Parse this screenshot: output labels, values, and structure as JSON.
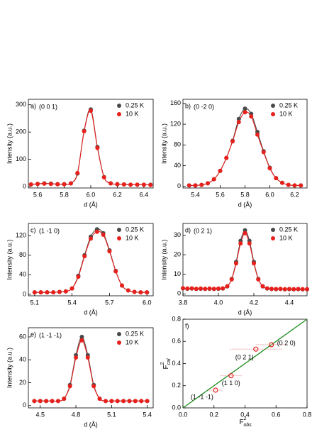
{
  "chart_data": [
    {
      "type": "line",
      "label": "a)",
      "reflection": "(0 0 1)",
      "xlabel": "d (Å)",
      "ylabel": "Intensity (a.u.)",
      "legend": "upper right",
      "x": [
        5.55,
        5.6,
        5.65,
        5.7,
        5.75,
        5.8,
        5.85,
        5.9,
        5.95,
        6.0,
        6.05,
        6.1,
        6.15,
        6.2,
        6.25,
        6.3,
        6.35,
        6.4,
        6.45
      ],
      "series": [
        {
          "name": "0.25 K",
          "color": "#4a4a4a",
          "values": [
            8,
            10,
            12,
            11,
            9,
            9,
            12,
            48,
            205,
            283,
            145,
            35,
            12,
            9,
            8,
            7,
            7,
            7,
            7
          ]
        },
        {
          "name": "10 K",
          "color": "#e8201c",
          "values": [
            8,
            10,
            11,
            10,
            9,
            9,
            12,
            50,
            203,
            278,
            142,
            34,
            12,
            9,
            8,
            7,
            7,
            7,
            6
          ]
        }
      ],
      "xlim": [
        5.53,
        6.47
      ],
      "ylim": [
        -5,
        320
      ],
      "xticks": [
        5.6,
        5.8,
        {
          "value": 6,
          "label": "6.0"
        },
        6.2,
        6.4
      ],
      "yticks": [
        0,
        100,
        200,
        300
      ]
    },
    {
      "type": "line",
      "label": "b)",
      "reflection": "(0 -2 0)",
      "xlabel": "d (Å)",
      "ylabel": "Intensity (a.u.)",
      "legend": "upper right",
      "x": [
        5.35,
        5.4,
        5.45,
        5.5,
        5.55,
        5.6,
        5.65,
        5.7,
        5.75,
        5.8,
        5.85,
        5.9,
        5.95,
        6.0,
        6.05,
        6.1,
        6.15,
        6.2,
        6.25
      ],
      "series": [
        {
          "name": "0.25 K",
          "color": "#4a4a4a",
          "values": [
            2,
            2,
            3,
            6,
            14,
            30,
            55,
            88,
            130,
            150,
            140,
            105,
            68,
            36,
            16,
            7,
            3,
            2,
            2
          ]
        },
        {
          "name": "10 K",
          "color": "#e8201c",
          "values": [
            2,
            2,
            3,
            6,
            14,
            30,
            55,
            87,
            124,
            143,
            135,
            100,
            66,
            35,
            16,
            7,
            3,
            2,
            2
          ]
        }
      ],
      "xlim": [
        5.3,
        6.3
      ],
      "ylim": [
        -3,
        168
      ],
      "xticks": [
        5.4,
        5.6,
        5.8,
        {
          "value": 6,
          "label": "6.0"
        },
        6.2
      ],
      "yticks": [
        0,
        40,
        80,
        120,
        160
      ]
    },
    {
      "type": "line",
      "label": "c)",
      "reflection": "(1 -1 0)",
      "xlabel": "d (Å)",
      "ylabel": "Intensity (a.u.)",
      "legend": "upper right",
      "x": [
        5.1,
        5.15,
        5.2,
        5.25,
        5.3,
        5.35,
        5.4,
        5.45,
        5.5,
        5.55,
        5.6,
        5.65,
        5.7,
        5.75,
        5.8,
        5.85,
        5.9,
        5.95,
        6.0
      ],
      "series": [
        {
          "name": "0.25 K",
          "color": "#4a4a4a",
          "values": [
            4,
            4,
            4,
            4,
            5,
            6,
            12,
            38,
            80,
            118,
            133,
            125,
            90,
            48,
            18,
            8,
            5,
            4,
            4
          ]
        },
        {
          "name": "10 K",
          "color": "#e8201c",
          "values": [
            4,
            4,
            4,
            4,
            5,
            6,
            12,
            36,
            78,
            114,
            128,
            122,
            88,
            47,
            18,
            8,
            5,
            4,
            4
          ]
        }
      ],
      "xlim": [
        5.05,
        6.05
      ],
      "ylim": [
        -3,
        145
      ],
      "xticks": [
        5.1,
        5.4,
        5.7,
        {
          "value": 6,
          "label": "6.0"
        }
      ],
      "yticks": [
        0,
        40,
        80,
        120
      ]
    },
    {
      "type": "line",
      "label": "d)",
      "reflection": "(0 2 1)",
      "xlabel": "d (Å)",
      "ylabel": "Intensity (a.u.)",
      "legend": "upper right",
      "x": [
        3.8,
        3.825,
        3.85,
        3.875,
        3.9,
        3.925,
        3.95,
        3.975,
        4.0,
        4.025,
        4.05,
        4.075,
        4.1,
        4.125,
        4.15,
        4.175,
        4.2,
        4.225,
        4.25,
        4.275,
        4.3,
        4.325,
        4.35,
        4.375,
        4.4,
        4.425,
        4.45,
        4.475,
        4.5
      ],
      "series": [
        {
          "name": "0.25 K",
          "color": "#4a4a4a",
          "values": [
            2.8,
            2.6,
            2.7,
            2.5,
            2.6,
            2.5,
            2.6,
            2.5,
            2.6,
            2.7,
            3.8,
            7.6,
            16.3,
            27.1,
            32.5,
            27.1,
            16.3,
            7.6,
            3.8,
            2.7,
            2.5,
            2.4,
            2.5,
            2.3,
            2.4,
            2.3,
            2.4,
            2.3,
            2.3
          ]
        },
        {
          "name": "10 K",
          "color": "#e8201c",
          "values": [
            2.9,
            2.7,
            2.8,
            2.6,
            2.7,
            2.6,
            2.7,
            2.6,
            2.7,
            2.8,
            3.9,
            7.4,
            15.6,
            25.8,
            31.0,
            25.8,
            15.6,
            7.4,
            3.9,
            2.8,
            2.6,
            2.5,
            2.6,
            2.4,
            2.5,
            2.4,
            2.5,
            2.4,
            2.4
          ]
        }
      ],
      "xlim": [
        3.8,
        4.5
      ],
      "ylim": [
        -1,
        36
      ],
      "xticks": [
        3.8,
        {
          "value": 4,
          "label": "4.0"
        },
        4.2,
        4.4
      ],
      "yticks": [
        0,
        10,
        20,
        30
      ]
    },
    {
      "type": "line",
      "label": "e)",
      "reflection": "(1 -1 -1)",
      "xlabel": "d (Å)",
      "ylabel": "Intensity (a.u.)",
      "legend": "upper right",
      "x": [
        4.45,
        4.5,
        4.55,
        4.6,
        4.65,
        4.7,
        4.75,
        4.8,
        4.85,
        4.9,
        4.95,
        5.0,
        5.05,
        5.1,
        5.15,
        5.2,
        5.25,
        5.3,
        5.35,
        5.4
      ],
      "series": [
        {
          "name": "0.25 K",
          "color": "#4a4a4a",
          "values": [
            4,
            4,
            4,
            4,
            4,
            6,
            18,
            44,
            60,
            44,
            18,
            6,
            4,
            4,
            4,
            4,
            4,
            4,
            4,
            4
          ]
        },
        {
          "name": "10 K",
          "color": "#e8201c",
          "values": [
            4,
            4,
            4,
            4,
            4,
            6,
            17,
            42,
            57,
            42,
            17,
            6,
            4,
            4,
            4,
            4,
            4,
            4,
            4,
            4
          ]
        }
      ],
      "xlim": [
        4.4,
        5.45
      ],
      "ylim": [
        -2,
        68
      ],
      "xticks": [
        4.5,
        4.8,
        5.1,
        5.4
      ],
      "yticks": [
        0,
        20,
        40,
        60
      ]
    },
    {
      "type": "scatter",
      "label": "f)",
      "xlabel": {
        "base": "F",
        "sup": "2",
        "sub": "obs"
      },
      "ylabel": {
        "base": "F",
        "sup": "2",
        "sub": "cal"
      },
      "points": [
        {
          "label": "(1 -1 -1)",
          "x": 0.21,
          "y": 0.16,
          "xerr": 0.045
        },
        {
          "label": "(1 1 0)",
          "x": 0.31,
          "y": 0.29,
          "xerr": 0.07
        },
        {
          "label": "(0 2 1)",
          "x": 0.47,
          "y": 0.53,
          "xerr": 0.17
        },
        {
          "label": "(0 2 0)",
          "x": 0.57,
          "y": 0.57,
          "xerr": 0.1
        }
      ],
      "color": "#e8201c",
      "line_color": "#1a8a1a",
      "label_color": "#1a3ccc",
      "xlim": [
        0,
        0.8
      ],
      "ylim": [
        0,
        0.8
      ],
      "xticks": [
        {
          "value": 0,
          "label": "0.0"
        },
        0.2,
        0.4,
        0.6,
        0.8
      ],
      "yticks": [
        {
          "value": 0,
          "label": "0.0"
        },
        0.2,
        0.4,
        0.6,
        0.8
      ]
    }
  ]
}
